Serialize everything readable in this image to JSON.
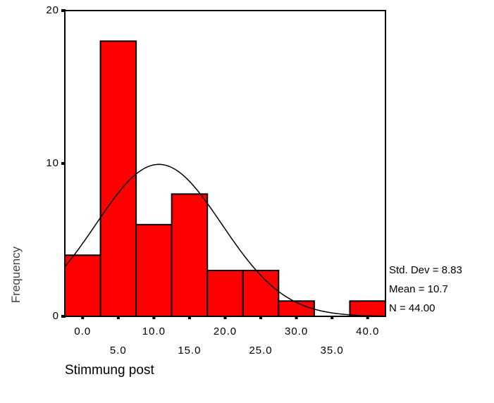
{
  "chart_data": {
    "type": "bar",
    "subtype": "histogram-with-normal-curve",
    "xlabel": "Stimmung post",
    "ylabel": "Frequency",
    "bin_centers": [
      0,
      5,
      10,
      15,
      20,
      25,
      30,
      35,
      40
    ],
    "values": [
      4,
      18,
      6,
      8,
      3,
      3,
      1,
      0,
      1
    ],
    "x_tick_labels_row1": [
      "0.0",
      "10.0",
      "20.0",
      "30.0",
      "40.0"
    ],
    "x_tick_labels_row2": [
      "5.0",
      "15.0",
      "25.0",
      "35.0"
    ],
    "y_ticks": [
      0,
      10,
      20
    ],
    "y_tick_labels": [
      "0",
      "10",
      "20"
    ],
    "ylim": [
      0,
      20
    ],
    "xlim": [
      -2.5,
      42.5
    ],
    "bar_color": "#ff0000",
    "curve_color": "#000000",
    "stats": {
      "std_dev": "Std. Dev = 8.83",
      "mean": "Mean = 10.7",
      "n": "N = 44.00"
    },
    "normal_curve": {
      "mean": 10.7,
      "std_dev": 8.83,
      "n": 44,
      "bin_width": 5
    }
  }
}
